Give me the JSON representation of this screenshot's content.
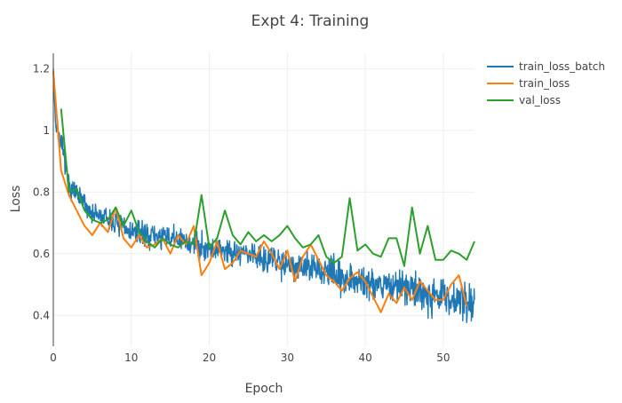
{
  "chart_data": {
    "type": "line",
    "title": "Expt 4: Training",
    "xlabel": "Epoch",
    "ylabel": "Loss",
    "xlim": [
      0,
      54
    ],
    "ylim": [
      0.3,
      1.25
    ],
    "x_ticks": [
      0,
      10,
      20,
      30,
      40,
      50
    ],
    "y_ticks": [
      0.4,
      0.6,
      0.8,
      1,
      1.2
    ],
    "grid": true,
    "legend_position": "top-right",
    "series": [
      {
        "name": "train_loss_batch",
        "color": "#1f77b4",
        "style": "noisy-per-batch",
        "x_start": 0,
        "x_end": 54,
        "points_per_epoch": 20,
        "noise_amplitude_min": 0.05,
        "noise_amplitude_max": 0.09,
        "trend": [
          [
            0,
            1.2
          ],
          [
            0.3,
            1.02
          ],
          [
            1,
            0.96
          ],
          [
            2,
            0.82
          ],
          [
            3,
            0.79
          ],
          [
            5,
            0.73
          ],
          [
            8,
            0.7
          ],
          [
            10,
            0.67
          ],
          [
            15,
            0.65
          ],
          [
            20,
            0.62
          ],
          [
            25,
            0.6
          ],
          [
            30,
            0.57
          ],
          [
            35,
            0.54
          ],
          [
            40,
            0.51
          ],
          [
            45,
            0.49
          ],
          [
            50,
            0.46
          ],
          [
            54,
            0.44
          ]
        ]
      },
      {
        "name": "train_loss",
        "color": "#ff7f0e",
        "x": [
          0,
          1,
          2,
          3,
          4,
          5,
          6,
          7,
          8,
          9,
          10,
          11,
          12,
          13,
          14,
          15,
          16,
          17,
          18,
          19,
          20,
          21,
          22,
          23,
          24,
          25,
          26,
          27,
          28,
          29,
          30,
          31,
          32,
          33,
          34,
          35,
          36,
          37,
          38,
          39,
          40,
          41,
          42,
          43,
          44,
          45,
          46,
          47,
          48,
          49,
          50,
          51,
          52,
          53
        ],
        "y": [
          1.19,
          0.87,
          0.79,
          0.74,
          0.69,
          0.66,
          0.7,
          0.67,
          0.75,
          0.65,
          0.62,
          0.66,
          0.62,
          0.63,
          0.65,
          0.6,
          0.66,
          0.63,
          0.69,
          0.53,
          0.57,
          0.64,
          0.55,
          0.57,
          0.61,
          0.6,
          0.59,
          0.64,
          0.6,
          0.55,
          0.61,
          0.51,
          0.59,
          0.63,
          0.58,
          0.53,
          0.51,
          0.48,
          0.52,
          0.54,
          0.51,
          0.46,
          0.41,
          0.47,
          0.44,
          0.49,
          0.45,
          0.51,
          0.48,
          0.45,
          0.45,
          0.5,
          0.53,
          0.43
        ]
      },
      {
        "name": "val_loss",
        "color": "#2ca02c",
        "x": [
          1,
          2,
          3,
          4,
          5,
          6,
          7,
          8,
          9,
          10,
          11,
          12,
          13,
          14,
          15,
          16,
          17,
          18,
          19,
          20,
          21,
          22,
          23,
          24,
          25,
          26,
          27,
          28,
          29,
          30,
          31,
          32,
          33,
          34,
          35,
          36,
          37,
          38,
          39,
          40,
          41,
          42,
          43,
          44,
          45,
          46,
          47,
          48,
          49,
          50,
          51,
          52,
          53,
          54
        ],
        "y": [
          1.07,
          0.8,
          0.81,
          0.74,
          0.71,
          0.7,
          0.71,
          0.75,
          0.69,
          0.74,
          0.67,
          0.64,
          0.62,
          0.65,
          0.63,
          0.62,
          0.64,
          0.63,
          0.79,
          0.62,
          0.65,
          0.74,
          0.66,
          0.63,
          0.67,
          0.64,
          0.66,
          0.64,
          0.66,
          0.69,
          0.65,
          0.62,
          0.63,
          0.66,
          0.59,
          0.57,
          0.59,
          0.78,
          0.61,
          0.63,
          0.6,
          0.59,
          0.65,
          0.65,
          0.56,
          0.75,
          0.6,
          0.69,
          0.58,
          0.58,
          0.61,
          0.6,
          0.58,
          0.64
        ]
      }
    ]
  }
}
